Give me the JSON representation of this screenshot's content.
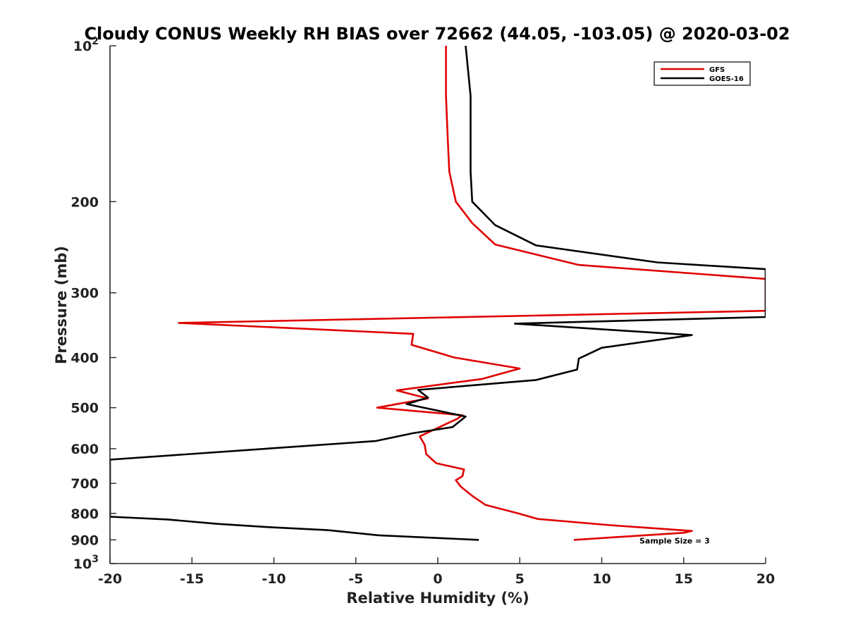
{
  "chart_data": {
    "type": "line",
    "title": "Cloudy CONUS Weekly RH BIAS over 72662 (44.05, -103.05) @ 2020-03-02",
    "xlabel": "Relative Humidity (%)",
    "ylabel": "Pressure (mb)",
    "xlim": [
      -20,
      20
    ],
    "ylim": [
      100,
      1000
    ],
    "y_scale": "log",
    "y_reversed": true,
    "grid": false,
    "legend_position": "top-right",
    "x_ticks": [
      {
        "value": -20,
        "label": "-20"
      },
      {
        "value": -15,
        "label": "-15"
      },
      {
        "value": -10,
        "label": "-10"
      },
      {
        "value": -5,
        "label": "-5"
      },
      {
        "value": 0,
        "label": "0"
      },
      {
        "value": 5,
        "label": "5"
      },
      {
        "value": 10,
        "label": "10"
      },
      {
        "value": 15,
        "label": "15"
      },
      {
        "value": 20,
        "label": "20"
      }
    ],
    "y_ticks": [
      {
        "value": 100,
        "label": "10",
        "sup": "2"
      },
      {
        "value": 200,
        "label": "200"
      },
      {
        "value": 300,
        "label": "300"
      },
      {
        "value": 400,
        "label": "400"
      },
      {
        "value": 500,
        "label": "500"
      },
      {
        "value": 600,
        "label": "600"
      },
      {
        "value": 700,
        "label": "700"
      },
      {
        "value": 800,
        "label": "800"
      },
      {
        "value": 900,
        "label": "900"
      },
      {
        "value": 1000,
        "label": "10",
        "sup": "3"
      }
    ],
    "series": [
      {
        "name": "GFS",
        "color": "#e00000",
        "points": [
          [
            0.5,
            100
          ],
          [
            0.5,
            125
          ],
          [
            0.6,
            150
          ],
          [
            0.7,
            175
          ],
          [
            1.1,
            200
          ],
          [
            2.1,
            220
          ],
          [
            3.5,
            242
          ],
          [
            8.6,
            265
          ],
          [
            20,
            282
          ],
          [
            20,
            325
          ],
          [
            -15.8,
            343
          ],
          [
            -1.5,
            360
          ],
          [
            -1.6,
            378
          ],
          [
            1.0,
            400
          ],
          [
            5.0,
            420
          ],
          [
            2.7,
            440
          ],
          [
            -2.5,
            463
          ],
          [
            -0.6,
            480
          ],
          [
            -3.7,
            500
          ],
          [
            1.5,
            517
          ],
          [
            1.2,
            525
          ],
          [
            -1.1,
            568
          ],
          [
            -0.8,
            590
          ],
          [
            -0.7,
            615
          ],
          [
            -0.1,
            640
          ],
          [
            1.6,
            658
          ],
          [
            1.5,
            678
          ],
          [
            1.1,
            690
          ],
          [
            1.4,
            710
          ],
          [
            2.1,
            740
          ],
          [
            2.9,
            770
          ],
          [
            4.9,
            800
          ],
          [
            6.1,
            820
          ],
          [
            10.5,
            843
          ],
          [
            15.5,
            865
          ],
          [
            15.0,
            872
          ],
          [
            8.3,
            900
          ]
        ]
      },
      {
        "name": "GOES-16",
        "color": "#000000",
        "points": [
          [
            1.7,
            100
          ],
          [
            2.0,
            125
          ],
          [
            2.0,
            150
          ],
          [
            2.0,
            175
          ],
          [
            2.1,
            200
          ],
          [
            3.5,
            222
          ],
          [
            6.0,
            243
          ],
          [
            13.4,
            262
          ],
          [
            20,
            270
          ],
          [
            20,
            334
          ],
          [
            4.7,
            344
          ],
          [
            15.5,
            362
          ],
          [
            10.0,
            383
          ],
          [
            8.6,
            402
          ],
          [
            8.5,
            422
          ],
          [
            6.0,
            442
          ],
          [
            -1.2,
            462
          ],
          [
            -0.6,
            478
          ],
          [
            -1.9,
            492
          ],
          [
            1.7,
            520
          ],
          [
            0.9,
            545
          ],
          [
            -1.5,
            560
          ],
          [
            -3.8,
            580
          ],
          [
            -20,
            630
          ],
          [
            -20,
            812
          ],
          [
            -16.5,
            822
          ],
          [
            -13.5,
            838
          ],
          [
            -10.5,
            850
          ],
          [
            -6.7,
            862
          ],
          [
            -3.6,
            882
          ],
          [
            2.5,
            900
          ]
        ]
      }
    ],
    "annotations": [
      {
        "text": "Sample Size = 3",
        "x": 12.3,
        "y": 900
      }
    ]
  }
}
